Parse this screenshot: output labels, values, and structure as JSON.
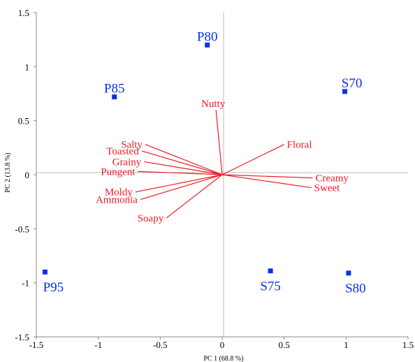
{
  "chart_data": {
    "type": "scatter",
    "xlabel": "PC 1 (68.8 %)",
    "ylabel": "PC 2 (13.8 %)",
    "xlim": [
      -1.5,
      1.5
    ],
    "ylim": [
      -1.5,
      1.5
    ],
    "x_ticks": [
      "-1.5",
      "-1",
      "-0.5",
      "0",
      "0.5",
      "1",
      "1.5"
    ],
    "y_ticks": [
      "1.5",
      "1",
      "0.5",
      "0",
      "-0.5",
      "-1",
      "-1.5"
    ],
    "grid": false,
    "series": [
      {
        "marker": "square",
        "color": "#0a32e6",
        "points": [
          {
            "label": "P80",
            "x": -0.12,
            "y": 1.2
          },
          {
            "label": "P85",
            "x": -0.87,
            "y": 0.72
          },
          {
            "label": "S70",
            "x": 0.99,
            "y": 0.77
          },
          {
            "label": "P95",
            "x": -1.43,
            "y": -0.9
          },
          {
            "label": "S75",
            "x": 0.39,
            "y": -0.89
          },
          {
            "label": "S80",
            "x": 1.02,
            "y": -0.91
          }
        ]
      },
      {
        "type": "vectors",
        "color": "#ee1c25",
        "origin": [
          0,
          0
        ],
        "vectors": [
          {
            "label": "Nutty",
            "x": -0.05,
            "y": 0.6
          },
          {
            "label": "Floral",
            "x": 0.5,
            "y": 0.28
          },
          {
            "label": "Salty",
            "x": -0.62,
            "y": 0.28
          },
          {
            "label": "Toasted",
            "x": -0.65,
            "y": 0.22
          },
          {
            "label": "Grainy",
            "x": -0.63,
            "y": 0.12
          },
          {
            "label": "Pungent",
            "x": -0.68,
            "y": 0.03
          },
          {
            "label": "Creamy",
            "x": 0.73,
            "y": -0.03
          },
          {
            "label": "Sweet",
            "x": 0.72,
            "y": -0.12
          },
          {
            "label": "Moldy",
            "x": -0.7,
            "y": -0.16
          },
          {
            "label": "Ammonia",
            "x": -0.66,
            "y": -0.23
          },
          {
            "label": "Soapy",
            "x": -0.45,
            "y": -0.4
          }
        ]
      }
    ]
  }
}
